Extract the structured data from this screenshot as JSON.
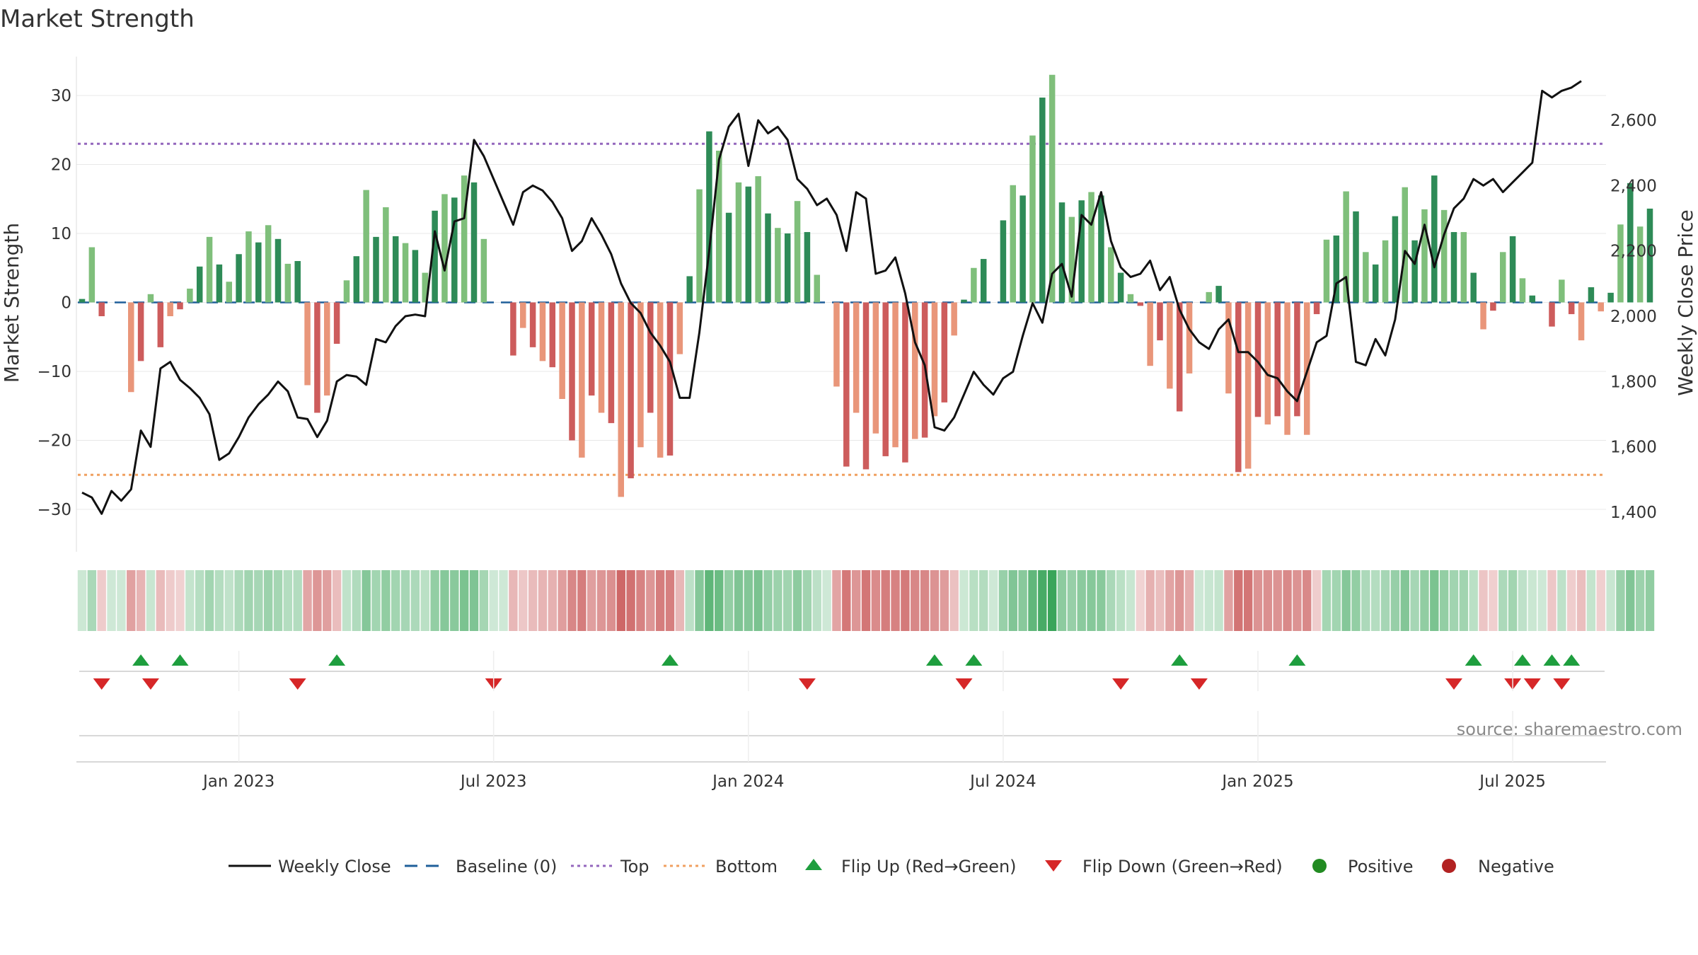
{
  "colors": {
    "green_strong": "#2e8b57",
    "green_light": "#7fbf7b",
    "red_strong": "#cd5c5c",
    "red_light": "#e9967a",
    "line": "#111111",
    "baseline": "#1f5f9a",
    "top": "#9467bd",
    "bottom": "#f0a060",
    "flip_up": "#1e9e3e",
    "flip_down": "#d62728",
    "positive": "#228b22",
    "negative": "#b22222",
    "grid": "#e8e8e8"
  },
  "chart_data": {
    "type": "bar",
    "title": "Market Strength",
    "ylabel": "Market Strength",
    "y2label": "Weekly Close Price",
    "ylim": [
      -36,
      36
    ],
    "y_ticks": [
      30,
      20,
      10,
      0,
      -10,
      -20,
      -30
    ],
    "y_tick_labels": [
      "30",
      "20",
      "10",
      "0",
      "−10",
      "−20",
      "−30"
    ],
    "y2lim": [
      1310,
      2750
    ],
    "y2_ticks": [
      2600,
      2400,
      2200,
      2000,
      1800,
      1600,
      1400
    ],
    "y2_tick_labels": [
      "2,600",
      "2,400",
      "2,200",
      "2,000",
      "1,800",
      "1,600",
      "1,400"
    ],
    "x_tick_labels": [
      "Jan 2023",
      "Jul 2023",
      "Jan 2024",
      "Jul 2024",
      "Jan 2025",
      "Jul 2025"
    ],
    "x_tick_weeks": [
      16,
      42,
      68,
      94,
      120,
      146
    ],
    "top_level": 23,
    "bottom_level": -25,
    "baseline_level": 0,
    "strength_values": [
      0.5,
      8,
      -2,
      0,
      0,
      -13,
      -8.5,
      1.2,
      -6.5,
      -2,
      -1,
      2,
      5.2,
      9.5,
      5.5,
      3,
      7,
      10.3,
      8.7,
      11.2,
      9.2,
      5.6,
      6,
      -12,
      -16,
      -13.5,
      -6,
      3.2,
      6.7,
      16.3,
      9.5,
      13.8,
      9.6,
      8.6,
      7.6,
      4.3,
      13.3,
      15.7,
      15.2,
      18.4,
      17.4,
      9.2,
      0,
      0,
      -7.7,
      -3.7,
      -6.5,
      -8.5,
      -9.4,
      -14,
      -20,
      -22.5,
      -13.5,
      -16,
      -17.5,
      -28.2,
      -25.5,
      -21,
      -16,
      -22.5,
      -22.2,
      -7.5,
      3.8,
      16.4,
      24.8,
      22,
      13,
      17.4,
      16.8,
      18.3,
      12.9,
      10.8,
      10,
      14.7,
      10.2,
      4,
      0,
      -12.2,
      -23.8,
      -16,
      -24.2,
      -19,
      -22.3,
      -21,
      -23.2,
      -19.8,
      -19.6,
      -16.5,
      -14.5,
      -4.8,
      0.4,
      5,
      6.3,
      0,
      11.9,
      17,
      15.5,
      24.2,
      29.7,
      33,
      14.5,
      12.4,
      14.8,
      16,
      15.5,
      8,
      4.3,
      1.2,
      -0.5,
      -9.2,
      -5.5,
      -12.5,
      -15.8,
      -10.3,
      0,
      1.5,
      2.4,
      -13.2,
      -24.6,
      -24.1,
      -16.6,
      -17.7,
      -16.5,
      -19.2,
      -16.5,
      -19.2,
      -1.7,
      9.1,
      9.7,
      16.1,
      13.2,
      7.3,
      5.5,
      9,
      12.5,
      16.7,
      9,
      13.5,
      18.4,
      13.4,
      10.2,
      10.2,
      4.3,
      -3.9,
      -1.2,
      7.3,
      9.6,
      3.5,
      1,
      0,
      -3.5,
      3.3,
      -1.7,
      -5.5,
      2.2,
      -1.3,
      1.4,
      11.3,
      17.3,
      11,
      13.6
    ],
    "weekly_close": [
      1460,
      1445,
      1395,
      1465,
      1435,
      1470,
      1650,
      1600,
      1840,
      1860,
      1805,
      1780,
      1750,
      1700,
      1560,
      1580,
      1630,
      1690,
      1730,
      1760,
      1800,
      1770,
      1690,
      1685,
      1630,
      1680,
      1800,
      1820,
      1815,
      1790,
      1930,
      1920,
      1970,
      2000,
      2005,
      2000,
      2260,
      2140,
      2290,
      2300,
      2540,
      2490,
      2420,
      2350,
      2280,
      2380,
      2400,
      2385,
      2350,
      2300,
      2200,
      2230,
      2300,
      2250,
      2190,
      2100,
      2040,
      2010,
      1950,
      1910,
      1860,
      1750,
      1750,
      1950,
      2200,
      2480,
      2580,
      2620,
      2460,
      2600,
      2560,
      2580,
      2540,
      2420,
      2390,
      2340,
      2360,
      2310,
      2200,
      2380,
      2360,
      2130,
      2140,
      2180,
      2070,
      1920,
      1850,
      1660,
      1650,
      1690,
      1760,
      1830,
      1790,
      1760,
      1810,
      1830,
      1940,
      2040,
      1980,
      2130,
      2160,
      2060,
      2310,
      2280,
      2380,
      2230,
      2150,
      2120,
      2130,
      2170,
      2080,
      2120,
      2020,
      1960,
      1920,
      1900,
      1960,
      1990,
      1890,
      1890,
      1860,
      1820,
      1810,
      1770,
      1740,
      1830,
      1920,
      1940,
      2100,
      2120,
      1860,
      1850,
      1930,
      1880,
      1990,
      2200,
      2160,
      2280,
      2150,
      2250,
      2330,
      2360,
      2420,
      2400,
      2420,
      2380,
      2410,
      2440,
      2470,
      2690,
      2670,
      2690,
      2700,
      2720
    ],
    "flip_up_weeks": [
      6,
      10,
      26,
      60,
      87,
      91,
      112,
      124,
      142,
      147,
      150,
      152
    ],
    "flip_down_weeks": [
      2,
      7,
      22,
      42,
      74,
      90,
      106,
      114,
      140,
      146,
      148,
      151
    ]
  },
  "legend": {
    "weekly_close": "Weekly Close",
    "baseline": "Baseline (0)",
    "top": "Top",
    "bottom": "Bottom",
    "flip_up": "Flip Up (Red→Green)",
    "flip_down": "Flip Down (Green→Red)",
    "positive": "Positive",
    "negative": "Negative"
  },
  "source": "source: sharemaestro.com"
}
